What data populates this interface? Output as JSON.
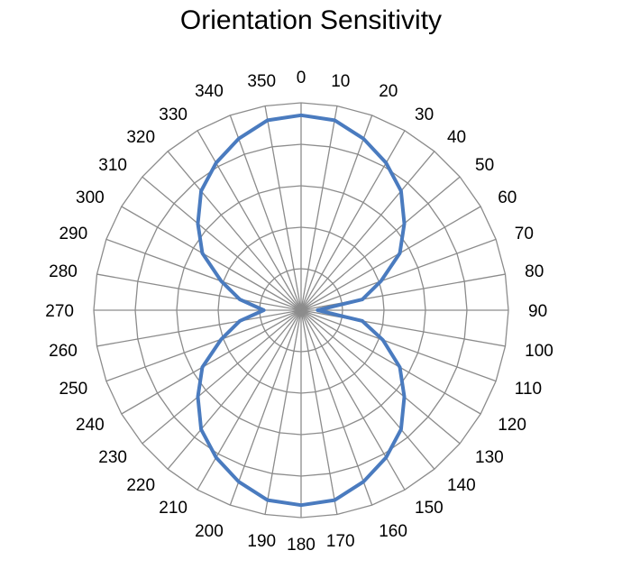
{
  "chart_data": {
    "type": "polar-line",
    "title": "Orientation Sensitivity",
    "angle_unit": "degrees",
    "angle_ticks": [
      0,
      10,
      20,
      30,
      40,
      50,
      60,
      70,
      80,
      90,
      100,
      110,
      120,
      130,
      140,
      150,
      160,
      170,
      180,
      190,
      200,
      210,
      220,
      230,
      240,
      250,
      260,
      270,
      280,
      290,
      300,
      310,
      320,
      330,
      340,
      350
    ],
    "radial_range": [
      0,
      1
    ],
    "radial_rings": 5,
    "radial_tick_labels_shown": false,
    "grid": true,
    "legend": "none",
    "series": [
      {
        "color": "#4a7bbf",
        "angles": [
          0,
          10,
          20,
          30,
          40,
          50,
          60,
          70,
          80,
          90,
          100,
          110,
          120,
          130,
          140,
          150,
          160,
          170,
          180,
          190,
          200,
          210,
          220,
          230,
          240,
          250,
          260,
          270,
          280,
          290,
          300,
          310,
          320,
          330,
          340,
          350
        ],
        "values": [
          0.94,
          0.93,
          0.88,
          0.82,
          0.75,
          0.65,
          0.55,
          0.41,
          0.3,
          0.08,
          0.3,
          0.42,
          0.55,
          0.65,
          0.75,
          0.82,
          0.88,
          0.93,
          0.94,
          0.93,
          0.88,
          0.82,
          0.75,
          0.65,
          0.55,
          0.41,
          0.3,
          0.18,
          0.3,
          0.41,
          0.55,
          0.65,
          0.75,
          0.82,
          0.88,
          0.93
        ]
      }
    ]
  },
  "colors": {
    "grid": "#8c8c8c",
    "series": "#4a7bbf"
  }
}
